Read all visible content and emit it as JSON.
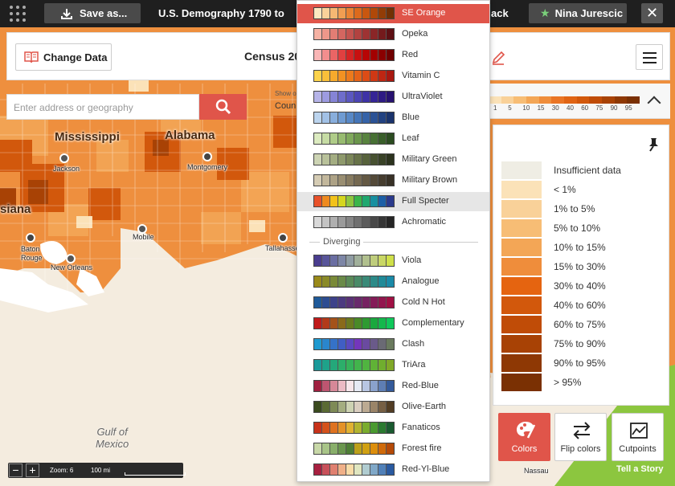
{
  "topbar": {
    "save_label": "Save as...",
    "title": "U.S. Demography 1790 to",
    "back_label": "ack",
    "user_name": "Nina Jurescic",
    "close_label": "✕"
  },
  "header": {
    "change_data_label": "Change Data",
    "census_title": "Census 20"
  },
  "search": {
    "placeholder": "Enter address or geography",
    "show_label": "Show o",
    "level_label": "Coun"
  },
  "strip": {
    "colors": [
      "#fbe2b8",
      "#f9d199",
      "#f7bd75",
      "#f3a656",
      "#ef8d3b",
      "#ea7525",
      "#e06414",
      "#d2580c",
      "#c04c07",
      "#a84205",
      "#8e3804",
      "#7a3003"
    ],
    "ticks": [
      "1",
      "5",
      "10",
      "15",
      "30",
      "40",
      "60",
      "75",
      "90",
      "95"
    ]
  },
  "legend": {
    "items": [
      {
        "label": "Insufficient data",
        "color": "#efede4"
      },
      {
        "label": "< 1%",
        "color": "#fbe2b8"
      },
      {
        "label": "1% to 5%",
        "color": "#f9d199"
      },
      {
        "label": "5% to 10%",
        "color": "#f7bd75"
      },
      {
        "label": "10% to 15%",
        "color": "#f3a656"
      },
      {
        "label": "15% to 30%",
        "color": "#ef8d3b"
      },
      {
        "label": "30% to 40%",
        "color": "#e56410"
      },
      {
        "label": "40% to 60%",
        "color": "#d2580c"
      },
      {
        "label": "60% to 75%",
        "color": "#c04c07"
      },
      {
        "label": "75% to 90%",
        "color": "#a84205"
      },
      {
        "label": "90% to 95%",
        "color": "#8e3804"
      },
      {
        "label": "> 95%",
        "color": "#7a3003"
      }
    ]
  },
  "tools": {
    "colors_label": "Colors",
    "flip_label": "Flip colors",
    "cutpoints_label": "Cutpoints"
  },
  "zoom": {
    "minus": "−",
    "plus": "+",
    "zoom_label": "Zoom: 6",
    "scale_label": "100 mi"
  },
  "map": {
    "states": [
      "Mississippi",
      "Alabama",
      "siana"
    ],
    "cities": [
      "Jackson",
      "Montgomery",
      "Baton Rouge",
      "New Orleans",
      "Mobile",
      "Tallahasse"
    ],
    "baton": "Baton",
    "rouge": "Rouge",
    "gulf1": "Gulf of",
    "gulf2": "Mexico",
    "nassau": "Nassau",
    "partial_a": "a",
    "tell_story": "Tell a Story"
  },
  "dropdown": {
    "divider_label": "Diverging",
    "sequential": [
      {
        "label": "SE Orange",
        "colors": [
          "#fce8c0",
          "#f9d29a",
          "#f6b873",
          "#f19e52",
          "#ea8332",
          "#dd6a1c",
          "#c95710",
          "#b04808",
          "#923c06",
          "#723004"
        ]
      },
      {
        "label": "Opeka",
        "colors": [
          "#f6b2a4",
          "#ee978a",
          "#e37d74",
          "#d46660",
          "#c4534f",
          "#b24240",
          "#9e3333",
          "#8a2627",
          "#741a1c",
          "#5e1014"
        ]
      },
      {
        "label": "Red",
        "colors": [
          "#f9b6b6",
          "#f28e8e",
          "#ea6565",
          "#e04040",
          "#d52424",
          "#c81010",
          "#b70505",
          "#a30000",
          "#8a0000",
          "#700000"
        ]
      },
      {
        "label": "Vitamin C",
        "colors": [
          "#fcd34c",
          "#f9bf3a",
          "#f6aa2c",
          "#f29222",
          "#ec7a1c",
          "#e56318",
          "#dc4c16",
          "#cf3814",
          "#be2612",
          "#a81810"
        ]
      },
      {
        "label": "UltraViolet",
        "colors": [
          "#b6b4e8",
          "#9d9be0",
          "#8584d6",
          "#6e6dcb",
          "#5b57c0",
          "#4b44b4",
          "#3e33a6",
          "#352596",
          "#2e1a84",
          "#271270"
        ]
      },
      {
        "label": "Blue",
        "colors": [
          "#bcd4ee",
          "#a2c1e6",
          "#88aedc",
          "#6f9bd2",
          "#5888c6",
          "#4575b8",
          "#3663a8",
          "#2b5295",
          "#224281",
          "#1a336c"
        ]
      },
      {
        "label": "Leaf",
        "colors": [
          "#dcebc0",
          "#c6dca4",
          "#afcc88",
          "#97bb70",
          "#80a95c",
          "#6b964c",
          "#58833f",
          "#477034",
          "#395e2a",
          "#2c4c21"
        ]
      },
      {
        "label": "Military Green",
        "colors": [
          "#cdd4b4",
          "#b8c19a",
          "#a3ad82",
          "#8e996c",
          "#7b8659",
          "#687349",
          "#57623c",
          "#475131",
          "#394227",
          "#2c331e"
        ]
      },
      {
        "label": "Military Brown",
        "colors": [
          "#d5ccb4",
          "#c2b79c",
          "#ada286",
          "#998e72",
          "#877b60",
          "#756951",
          "#645944",
          "#544a39",
          "#463d2f",
          "#383126"
        ]
      },
      {
        "label": "Full Specter",
        "colors": [
          "#e8512a",
          "#ee8a20",
          "#f3c21a",
          "#d5d61e",
          "#8ec63f",
          "#3ab54a",
          "#1fa86f",
          "#1890a0",
          "#1c5fa6",
          "#2a3a8c"
        ]
      },
      {
        "label": "Achromatic",
        "colors": [
          "#d9d9d9",
          "#c4c4c4",
          "#afafaf",
          "#9a9a9a",
          "#858585",
          "#707070",
          "#5c5c5c",
          "#484848",
          "#363636",
          "#252525"
        ]
      }
    ],
    "diverging": [
      {
        "label": "Viola",
        "colors": [
          "#4a3d8f",
          "#58559a",
          "#6a6ea2",
          "#7d86a6",
          "#8f9ca3",
          "#a1b09b",
          "#b1c08e",
          "#bfcd7c",
          "#c9d765",
          "#cfe04a"
        ]
      },
      {
        "label": "Analogue",
        "colors": [
          "#9a8a1a",
          "#8a8a28",
          "#7a8a38",
          "#6a8a48",
          "#5a8a58",
          "#4a8a68",
          "#3a8a78",
          "#2c8a88",
          "#208a98",
          "#1a8aa8"
        ]
      },
      {
        "label": "Cold N Hot",
        "colors": [
          "#1f5a9a",
          "#2d4d92",
          "#3d428a",
          "#4c3a80",
          "#5a3276",
          "#682a6c",
          "#762362",
          "#841c58",
          "#92164e",
          "#a01044"
        ]
      },
      {
        "label": "Complementary",
        "colors": [
          "#c01a1a",
          "#b23a1a",
          "#a4521a",
          "#8a6a1a",
          "#6a7a20",
          "#4a8a28",
          "#2e9a32",
          "#1aa83e",
          "#14b84c",
          "#10c85a"
        ]
      },
      {
        "label": "Clash",
        "colors": [
          "#1f9ad0",
          "#2a86cc",
          "#3572c8",
          "#405ec4",
          "#5a4ac0",
          "#7436bc",
          "#6a4aa0",
          "#6a5a8a",
          "#6a6a74",
          "#6a7a5e"
        ]
      },
      {
        "label": "TriAra",
        "colors": [
          "#1a9a9a",
          "#1ea28a",
          "#24a87a",
          "#2cae6a",
          "#36b25a",
          "#42b44c",
          "#50b440",
          "#60b236",
          "#70ae2e",
          "#80a828"
        ]
      },
      {
        "label": "Red-Blue",
        "colors": [
          "#a02040",
          "#bd5570",
          "#d68898",
          "#ecbac4",
          "#f7e6ea",
          "#e6eaf4",
          "#b8c6e2",
          "#8aa2cc",
          "#5e7eb4",
          "#345a9a"
        ]
      },
      {
        "label": "Olive-Earth",
        "colors": [
          "#3a4a1e",
          "#5a6a34",
          "#7e8a56",
          "#a4ad80",
          "#cdd2b2",
          "#d9cdbf",
          "#bcaa92",
          "#9a8468",
          "#765f44",
          "#523d24"
        ]
      },
      {
        "label": "Fanaticos",
        "colors": [
          "#c8321a",
          "#d4521c",
          "#de7220",
          "#e49228",
          "#e0b232",
          "#b2b430",
          "#7aac2e",
          "#4a9a30",
          "#2a7a30",
          "#1a5a30"
        ]
      },
      {
        "label": "Forest fire",
        "colors": [
          "#c8d8a8",
          "#a8c488",
          "#88ae6a",
          "#6a964e",
          "#4e7e36",
          "#bda01a",
          "#d0a012",
          "#dc8e0c",
          "#d06a0a",
          "#b44a08"
        ]
      },
      {
        "label": "Red-Yl-Blue",
        "colors": [
          "#a82040",
          "#c8505a",
          "#e08070",
          "#f0b088",
          "#f8dca8",
          "#e0e6c0",
          "#b0ccd0",
          "#80a8c8",
          "#5080b8",
          "#2a5aa0"
        ]
      }
    ]
  }
}
